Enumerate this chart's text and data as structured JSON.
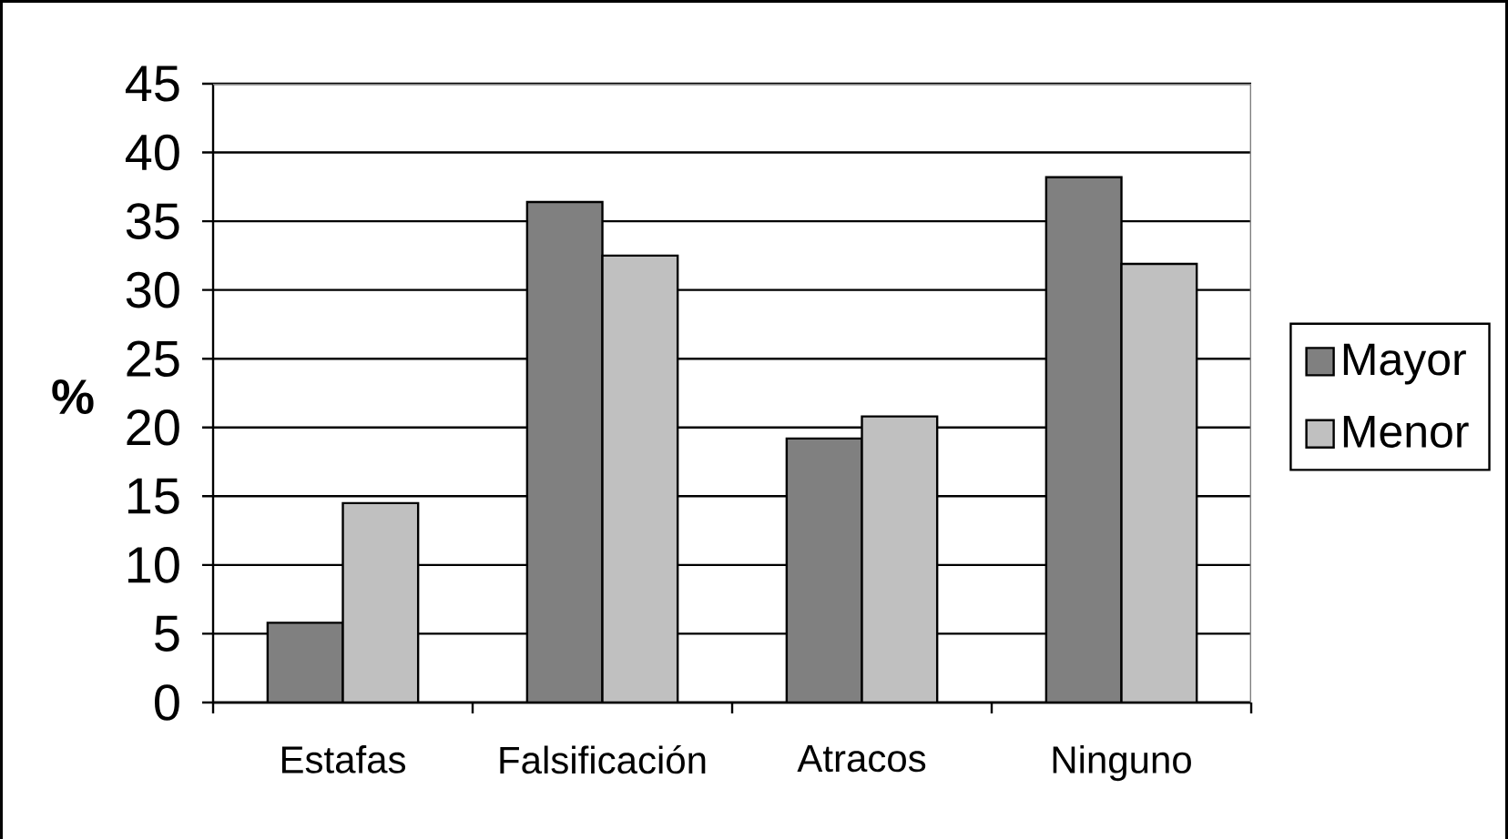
{
  "chart_data": {
    "type": "bar",
    "ylabel": "%",
    "categories": [
      "Estafas",
      "Falsificación",
      "Atracos",
      "Ninguno"
    ],
    "series": [
      {
        "name": "Mayor",
        "color": "#808080",
        "values": [
          5.8,
          36.4,
          19.2,
          38.2
        ]
      },
      {
        "name": "Menor",
        "color": "#c0c0c0",
        "values": [
          14.5,
          32.5,
          20.8,
          31.9
        ]
      }
    ],
    "ylim": [
      0,
      45
    ],
    "yticks": [
      0,
      5,
      10,
      15,
      20,
      25,
      30,
      35,
      40,
      45
    ],
    "grid": "y",
    "legend": "right"
  }
}
